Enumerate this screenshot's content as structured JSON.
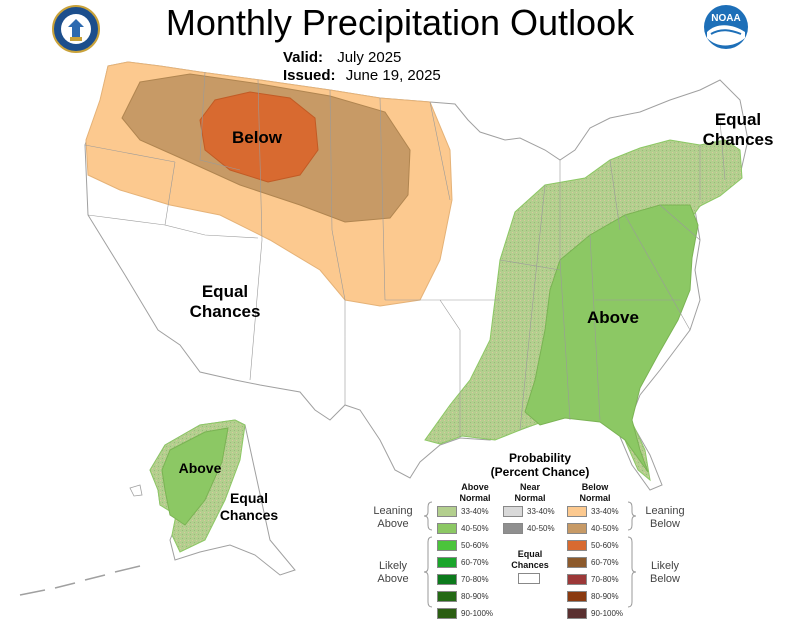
{
  "header": {
    "title": "Monthly Precipitation Outlook",
    "valid_label": "Valid:",
    "valid_value": "July 2025",
    "issued_label": "Issued:",
    "issued_value": "June 19, 2025",
    "noaa_text": "NOAA"
  },
  "map_labels": {
    "below": "Below",
    "above": "Above",
    "west_equal_1": "Equal",
    "west_equal_2": "Chances",
    "ne_equal_1": "Equal",
    "ne_equal_2": "Chances",
    "ak_above": "Above",
    "ak_equal_1": "Equal",
    "ak_equal_2": "Chances"
  },
  "legend": {
    "title_1": "Probability",
    "title_2": "(Percent Chance)",
    "above_head_1": "Above",
    "above_head_2": "Normal",
    "near_head_1": "Near",
    "near_head_2": "Normal",
    "below_head_1": "Below",
    "below_head_2": "Normal",
    "leaning_above_1": "Leaning",
    "leaning_above_2": "Above",
    "leaning_below_1": "Leaning",
    "leaning_below_2": "Below",
    "likely_above_1": "Likely",
    "likely_above_2": "Above",
    "likely_below_1": "Likely",
    "likely_below_2": "Below",
    "equal_1": "Equal",
    "equal_2": "Chances",
    "above_bins": [
      {
        "label": "33-40%",
        "color": "#b3cf8e"
      },
      {
        "label": "40-50%",
        "color": "#8cc864"
      },
      {
        "label": "50-60%",
        "color": "#4bc43b"
      },
      {
        "label": "60-70%",
        "color": "#1aa52b"
      },
      {
        "label": "70-80%",
        "color": "#0c7a1c"
      },
      {
        "label": "80-90%",
        "color": "#246a15"
      },
      {
        "label": "90-100%",
        "color": "#2b5e12"
      }
    ],
    "near_bins": [
      {
        "label": "33-40%",
        "color": "#d9d9d9"
      },
      {
        "label": "40-50%",
        "color": "#8f8f8f"
      }
    ],
    "below_bins": [
      {
        "label": "33-40%",
        "color": "#fcc98f"
      },
      {
        "label": "40-50%",
        "color": "#c79a66"
      },
      {
        "label": "50-60%",
        "color": "#d86a30"
      },
      {
        "label": "60-70%",
        "color": "#8c5a2c"
      },
      {
        "label": "70-80%",
        "color": "#9c3838"
      },
      {
        "label": "80-90%",
        "color": "#8a3a10"
      },
      {
        "label": "90-100%",
        "color": "#5a3030"
      }
    ]
  },
  "colors": {
    "above_lean": "#b3cf8e",
    "above_40": "#8cc864",
    "below_lean": "#fcc98f",
    "below_40": "#c79a66",
    "below_50": "#d86a30",
    "border": "#a0a0a0",
    "noaa_blue": "#1d6fb8"
  }
}
